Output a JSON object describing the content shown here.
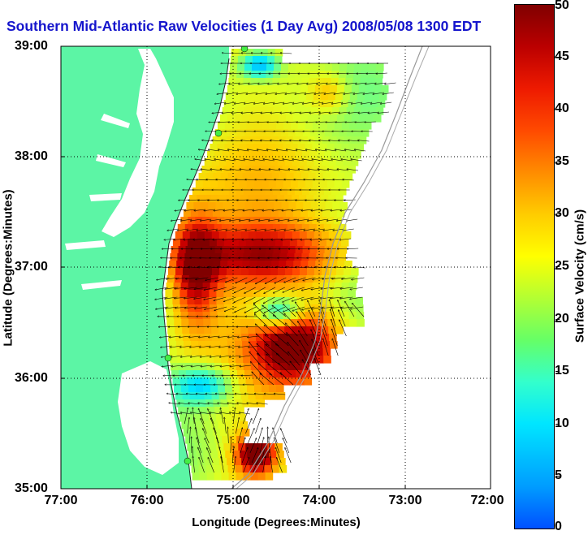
{
  "title": "Southern Mid-Atlantic Raw Velocities (1 Day Avg) 2008/05/08 1300 EDT",
  "map": {
    "xlabel": "Longitude (Degrees:Minutes)",
    "ylabel": "Latitude (Degrees:Minutes)",
    "x_ticks": [
      "77:00",
      "76:00",
      "75:00",
      "74:00",
      "73:00",
      "72:00"
    ],
    "y_ticks": [
      "39:00",
      "38:00",
      "37:00",
      "36:00",
      "35:00"
    ],
    "lon_range": [
      -77,
      -72
    ],
    "lat_range": [
      35,
      39
    ],
    "land_color": "#5cf5a5",
    "grid": true
  },
  "colorbar": {
    "label": "Surface Velocity (cm/s)",
    "ticks": [
      "50",
      "45",
      "40",
      "35",
      "30",
      "25",
      "20",
      "15",
      "10",
      "5",
      "0"
    ],
    "range": [
      0,
      50
    ]
  }
}
